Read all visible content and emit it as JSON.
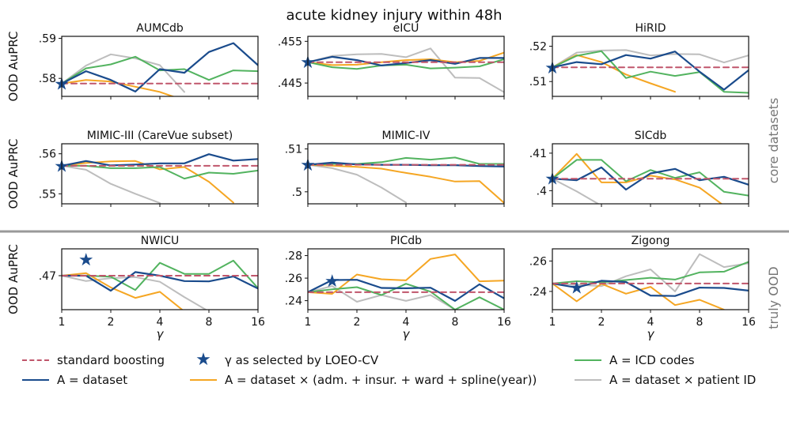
{
  "title": "acute kidney injury within 48h",
  "colors": {
    "standard": "#c0566b",
    "dataset": "#1a4b8c",
    "admission": "#f5a623",
    "icd": "#52b35f",
    "patient": "#bdbdbd",
    "separator": "#999999",
    "row_label": "#777777"
  },
  "row_labels": [
    "core datasets",
    "truly OOD"
  ],
  "ylabel": "OOD AuPRC",
  "xlabel": "γ",
  "xticks": [
    "1",
    "2",
    "4",
    "8",
    "16"
  ],
  "legend": {
    "standard": "standard boosting",
    "star": "γ as selected by LOEO-CV",
    "icd": "A = ICD codes",
    "dataset": "A = dataset",
    "admission": "A = dataset × (adm. + insur. + ward + spline(year))",
    "patient": "A = dataset × patient ID"
  },
  "chart_data": [
    {
      "type": "line",
      "title": "AUMCdb",
      "ylim": [
        0.5755,
        0.5905
      ],
      "yticks": [
        0.58,
        0.59
      ],
      "ytick_labels": [
        ".58",
        ".59"
      ],
      "ylabel": "OOD AuPRC",
      "show_xticks": false,
      "series": [
        {
          "name": "dataset",
          "x": [
            1,
            1.41,
            2,
            2.83,
            4,
            5.66,
            8,
            11.3,
            16
          ],
          "y": [
            0.5787,
            0.5818,
            0.5796,
            0.5767,
            0.5823,
            0.5814,
            0.5866,
            0.5888,
            0.5833
          ]
        },
        {
          "name": "admission",
          "x": [
            1,
            1.41,
            2,
            2.83,
            4,
            5.66
          ],
          "y": [
            0.5787,
            0.5796,
            0.5792,
            0.5779,
            0.5766,
            0.5745
          ]
        },
        {
          "name": "icd",
          "x": [
            1,
            1.41,
            2,
            2.83,
            4,
            5.66,
            8,
            11.3,
            16
          ],
          "y": [
            0.5787,
            0.5825,
            0.5835,
            0.5854,
            0.582,
            0.5823,
            0.5796,
            0.582,
            0.5818
          ]
        },
        {
          "name": "patient",
          "x": [
            1,
            1.41,
            2,
            2.83,
            4,
            5.66
          ],
          "y": [
            0.5787,
            0.5832,
            0.586,
            0.585,
            0.5833,
            0.5766
          ]
        },
        {
          "name": "standard",
          "x": [
            1,
            16
          ],
          "y": [
            0.5787,
            0.5787
          ]
        }
      ],
      "star": {
        "x": 1,
        "y": 0.5787
      }
    },
    {
      "type": "line",
      "title": "eICU",
      "ylim": [
        0.4418,
        0.4562
      ],
      "yticks": [
        0.445,
        0.455
      ],
      "ytick_labels": [
        ".445",
        ".455"
      ],
      "show_xticks": false,
      "series": [
        {
          "name": "dataset",
          "x": [
            1,
            1.41,
            2,
            2.83,
            4,
            5.66,
            8,
            11.3,
            16
          ],
          "y": [
            0.45,
            0.4513,
            0.4505,
            0.4492,
            0.4498,
            0.4505,
            0.4496,
            0.451,
            0.451
          ]
        },
        {
          "name": "admission",
          "x": [
            1,
            1.41,
            2,
            2.83,
            4,
            5.66,
            8,
            11.3,
            16
          ],
          "y": [
            0.45,
            0.4493,
            0.4494,
            0.45,
            0.4505,
            0.4507,
            0.45,
            0.4503,
            0.4523
          ]
        },
        {
          "name": "icd",
          "x": [
            1,
            1.41,
            2,
            2.83,
            4,
            5.66,
            8,
            11.3,
            16
          ],
          "y": [
            0.45,
            0.4488,
            0.4484,
            0.4492,
            0.4494,
            0.4485,
            0.4487,
            0.449,
            0.4507
          ]
        },
        {
          "name": "patient",
          "x": [
            1,
            1.41,
            2,
            2.83,
            4,
            5.66,
            8,
            11.3,
            16
          ],
          "y": [
            0.45,
            0.4515,
            0.4519,
            0.452,
            0.4512,
            0.4533,
            0.4463,
            0.4462,
            0.4428
          ]
        },
        {
          "name": "standard",
          "x": [
            1,
            16
          ],
          "y": [
            0.45,
            0.45
          ]
        }
      ],
      "star": {
        "x": 1,
        "y": 0.45
      }
    },
    {
      "type": "line",
      "title": "HiRID",
      "ylim": [
        0.5058,
        0.5228
      ],
      "yticks": [
        0.51,
        0.52
      ],
      "ytick_labels": [
        ".51",
        ".52"
      ],
      "show_xticks": false,
      "series": [
        {
          "name": "dataset",
          "x": [
            1,
            1.41,
            2,
            2.83,
            4,
            5.66,
            8,
            11.3,
            16
          ],
          "y": [
            0.514,
            0.5155,
            0.5149,
            0.5175,
            0.5165,
            0.5185,
            0.5128,
            0.5077,
            0.5132
          ]
        },
        {
          "name": "admission",
          "x": [
            1,
            1.41,
            2,
            2.83,
            4,
            5.66
          ],
          "y": [
            0.514,
            0.5175,
            0.5155,
            0.512,
            0.5095,
            0.5071
          ]
        },
        {
          "name": "icd",
          "x": [
            1,
            1.41,
            2,
            2.83,
            4,
            5.66,
            8,
            11.3,
            16
          ],
          "y": [
            0.514,
            0.5173,
            0.5186,
            0.511,
            0.5128,
            0.5116,
            0.5127,
            0.5071,
            0.5068
          ]
        },
        {
          "name": "patient",
          "x": [
            1,
            1.41,
            2,
            2.83,
            4,
            5.66,
            8,
            11.3,
            16
          ],
          "y": [
            0.514,
            0.5182,
            0.5188,
            0.5189,
            0.5174,
            0.5178,
            0.5177,
            0.5154,
            0.5174
          ]
        },
        {
          "name": "standard",
          "x": [
            1,
            16
          ],
          "y": [
            0.514,
            0.514
          ]
        }
      ],
      "star": {
        "x": 1,
        "y": 0.514
      }
    },
    {
      "type": "line",
      "title": "MIMIC-III (CareVue subset)",
      "ylim": [
        0.5475,
        0.5625
      ],
      "yticks": [
        0.55,
        0.56
      ],
      "ytick_labels": [
        ".55",
        ".56"
      ],
      "ylabel": "OOD AuPRC",
      "show_xticks": false,
      "series": [
        {
          "name": "dataset",
          "x": [
            1,
            1.41,
            2,
            2.83,
            4,
            5.66,
            8,
            11.3,
            16
          ],
          "y": [
            0.557,
            0.5582,
            0.5571,
            0.5573,
            0.5576,
            0.5576,
            0.5599,
            0.5583,
            0.5587
          ]
        },
        {
          "name": "admission",
          "x": [
            1,
            1.41,
            2,
            2.83,
            4,
            5.66,
            8,
            11.3
          ],
          "y": [
            0.557,
            0.5577,
            0.5581,
            0.5582,
            0.5561,
            0.5567,
            0.553,
            0.5478
          ]
        },
        {
          "name": "icd",
          "x": [
            1,
            1.41,
            2,
            2.83,
            4,
            5.66,
            8,
            11.3,
            16
          ],
          "y": [
            0.557,
            0.557,
            0.5564,
            0.5564,
            0.5567,
            0.5538,
            0.5553,
            0.555,
            0.5558
          ]
        },
        {
          "name": "patient",
          "x": [
            1,
            1.41,
            2,
            2.83,
            4
          ],
          "y": [
            0.557,
            0.556,
            0.5525,
            0.55,
            0.5477
          ]
        },
        {
          "name": "standard",
          "x": [
            1,
            16
          ],
          "y": [
            0.557,
            0.557
          ]
        }
      ],
      "star": {
        "x": 1,
        "y": 0.557
      }
    },
    {
      "type": "line",
      "title": "MIMIC-IV",
      "ylim": [
        0.4972,
        0.5112
      ],
      "yticks": [
        0.5,
        0.51
      ],
      "ytick_labels": [
        ".5",
        ".51"
      ],
      "show_xticks": false,
      "series": [
        {
          "name": "dataset",
          "x": [
            1,
            1.41,
            2,
            2.83,
            4,
            5.66,
            8,
            11.3,
            16
          ],
          "y": [
            0.5063,
            0.5068,
            0.5064,
            0.5063,
            0.5063,
            0.5062,
            0.5062,
            0.506,
            0.5059
          ]
        },
        {
          "name": "admission",
          "x": [
            1,
            1.41,
            2,
            2.83,
            4,
            5.66,
            8,
            11.3,
            16
          ],
          "y": [
            0.5063,
            0.5061,
            0.5058,
            0.5054,
            0.5044,
            0.5035,
            0.5024,
            0.5025,
            0.4974
          ]
        },
        {
          "name": "icd",
          "x": [
            1,
            1.41,
            2,
            2.83,
            4,
            5.66,
            8,
            11.3,
            16
          ],
          "y": [
            0.5063,
            0.5065,
            0.5065,
            0.5069,
            0.5079,
            0.5075,
            0.508,
            0.5065,
            0.5065
          ]
        },
        {
          "name": "patient",
          "x": [
            1,
            1.41,
            2,
            2.83,
            4
          ],
          "y": [
            0.5063,
            0.5055,
            0.504,
            0.501,
            0.4975
          ]
        },
        {
          "name": "standard",
          "x": [
            1,
            16
          ],
          "y": [
            0.5063,
            0.5063
          ]
        }
      ],
      "star": {
        "x": 1,
        "y": 0.5063
      }
    },
    {
      "type": "line",
      "title": "SICdb",
      "ylim": [
        0.3965,
        0.4125
      ],
      "yticks": [
        0.4,
        0.41
      ],
      "ytick_labels": [
        ".4",
        ".41"
      ],
      "show_xticks": false,
      "series": [
        {
          "name": "dataset",
          "x": [
            1,
            1.41,
            2,
            2.83,
            4,
            5.66,
            8,
            11.3,
            16
          ],
          "y": [
            0.4032,
            0.4028,
            0.4062,
            0.4003,
            0.4046,
            0.4058,
            0.4028,
            0.4037,
            0.4016
          ]
        },
        {
          "name": "admission",
          "x": [
            1,
            1.41,
            2,
            2.83,
            4,
            5.66,
            8,
            11.3
          ],
          "y": [
            0.4032,
            0.4098,
            0.4022,
            0.4022,
            0.404,
            0.403,
            0.4008,
            0.396
          ]
        },
        {
          "name": "icd",
          "x": [
            1,
            1.41,
            2,
            2.83,
            4,
            5.66,
            8,
            11.3,
            16
          ],
          "y": [
            0.4032,
            0.4082,
            0.4082,
            0.4025,
            0.4055,
            0.4034,
            0.4049,
            0.3997,
            0.3987
          ]
        },
        {
          "name": "patient",
          "x": [
            1,
            1.41,
            2
          ],
          "y": [
            0.4032,
            0.3998,
            0.396
          ]
        },
        {
          "name": "standard",
          "x": [
            1,
            16
          ],
          "y": [
            0.4032,
            0.4032
          ]
        }
      ],
      "star": {
        "x": 1,
        "y": 0.4032
      }
    },
    {
      "type": "line",
      "title": "NWICU",
      "ylim": [
        0.4605,
        0.4775
      ],
      "yticks": [
        0.47
      ],
      "ytick_labels": [
        ".47"
      ],
      "ylabel": "OOD AuPRC",
      "show_xticks": true,
      "series": [
        {
          "name": "dataset",
          "x": [
            1,
            1.41,
            2,
            2.83,
            4,
            5.66,
            8,
            11.3,
            16
          ],
          "y": [
            0.47,
            0.47,
            0.4658,
            0.471,
            0.47,
            0.4685,
            0.4684,
            0.4698,
            0.4664
          ]
        },
        {
          "name": "admission",
          "x": [
            1,
            1.41,
            2,
            2.83,
            4,
            5.66
          ],
          "y": [
            0.47,
            0.4707,
            0.4667,
            0.4638,
            0.4655,
            0.46
          ]
        },
        {
          "name": "icd",
          "x": [
            1,
            1.41,
            2,
            2.83,
            4,
            5.66,
            8,
            11.3,
            16
          ],
          "y": [
            0.47,
            0.47,
            0.4697,
            0.466,
            0.4736,
            0.4705,
            0.4705,
            0.4742,
            0.4665
          ]
        },
        {
          "name": "patient",
          "x": [
            1,
            1.41,
            2,
            2.83,
            4,
            5.66,
            8
          ],
          "y": [
            0.47,
            0.4685,
            0.4693,
            0.4696,
            0.4683,
            0.464,
            0.46
          ]
        },
        {
          "name": "standard",
          "x": [
            1,
            16
          ],
          "y": [
            0.47,
            0.47
          ]
        }
      ],
      "star": {
        "x": 1.41,
        "y": 0.4745
      }
    },
    {
      "type": "line",
      "title": "PICdb",
      "ylim": [
        0.232,
        0.286
      ],
      "yticks": [
        0.24,
        0.26,
        0.28
      ],
      "ytick_labels": [
        ".24",
        ".26",
        ".28"
      ],
      "show_xticks": true,
      "series": [
        {
          "name": "dataset",
          "x": [
            1,
            1.41,
            2,
            2.83,
            4,
            5.66,
            8,
            11.3,
            16
          ],
          "y": [
            0.2475,
            0.2583,
            0.2585,
            0.2513,
            0.251,
            0.2515,
            0.2398,
            0.2545,
            0.242
          ]
        },
        {
          "name": "admission",
          "x": [
            1,
            1.41,
            2,
            2.83,
            4,
            5.66,
            8,
            11.3,
            16
          ],
          "y": [
            0.2475,
            0.246,
            0.2632,
            0.259,
            0.258,
            0.277,
            0.281,
            0.2572,
            0.2578
          ]
        },
        {
          "name": "icd",
          "x": [
            1,
            1.41,
            2,
            2.83,
            4,
            5.66,
            8,
            11.3,
            16
          ],
          "y": [
            0.2475,
            0.25,
            0.252,
            0.245,
            0.255,
            0.248,
            0.232,
            0.243,
            0.232
          ]
        },
        {
          "name": "patient",
          "x": [
            1,
            1.41,
            2,
            2.83,
            4,
            5.66,
            8
          ],
          "y": [
            0.2475,
            0.253,
            0.239,
            0.245,
            0.2398,
            0.245,
            0.232
          ]
        },
        {
          "name": "standard",
          "x": [
            1,
            16
          ],
          "y": [
            0.2475,
            0.2475
          ]
        }
      ],
      "star": {
        "x": 1.41,
        "y": 0.2575
      }
    },
    {
      "type": "line",
      "title": "Zigong",
      "ylim": [
        0.228,
        0.268
      ],
      "yticks": [
        0.24,
        0.26
      ],
      "ytick_labels": [
        ".24",
        ".26"
      ],
      "show_xticks": true,
      "series": [
        {
          "name": "dataset",
          "x": [
            1,
            1.41,
            2,
            2.83,
            4,
            5.66,
            8,
            11.3,
            16
          ],
          "y": [
            0.2452,
            0.2425,
            0.247,
            0.2462,
            0.2373,
            0.237,
            0.2425,
            0.2423,
            0.2405
          ]
        },
        {
          "name": "admission",
          "x": [
            1,
            1.41,
            2,
            2.83,
            4,
            5.66,
            8,
            11.3
          ],
          "y": [
            0.2452,
            0.2335,
            0.245,
            0.2385,
            0.243,
            0.231,
            0.2345,
            0.228
          ]
        },
        {
          "name": "icd",
          "x": [
            1,
            1.41,
            2,
            2.83,
            4,
            5.66,
            8,
            11.3,
            16
          ],
          "y": [
            0.2452,
            0.2467,
            0.246,
            0.2475,
            0.249,
            0.2478,
            0.2525,
            0.253,
            0.2595
          ]
        },
        {
          "name": "patient",
          "x": [
            1,
            1.41,
            2,
            2.83,
            4,
            5.66,
            8,
            11.3,
            16
          ],
          "y": [
            0.2452,
            0.2445,
            0.2435,
            0.25,
            0.2545,
            0.24,
            0.2645,
            0.256,
            0.2585
          ]
        },
        {
          "name": "standard",
          "x": [
            1,
            16
          ],
          "y": [
            0.2452,
            0.2452
          ]
        }
      ],
      "star": {
        "x": 1.41,
        "y": 0.2425
      }
    }
  ]
}
